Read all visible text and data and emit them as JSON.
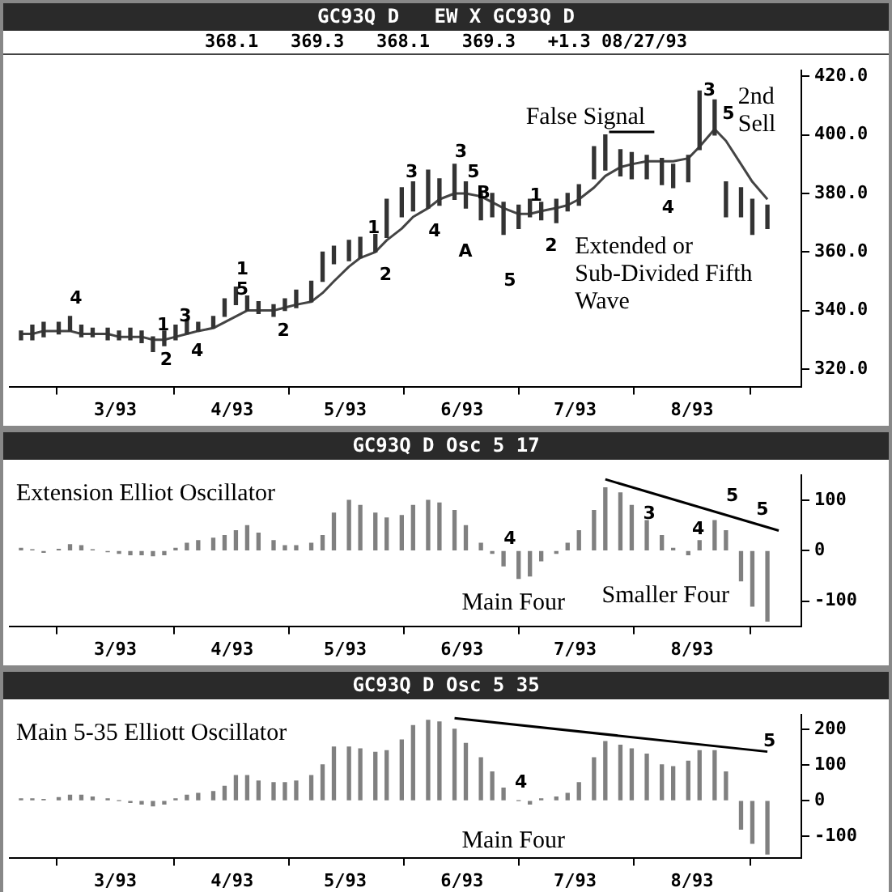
{
  "chart_data": [
    {
      "type": "bar",
      "title": "GC93Q D   EW X GC93Q D",
      "subtitle": "368.1   369.3   368.1   369.3   +1.3 08/27/93",
      "x": [
        "1993-02-04",
        "1993-02-07",
        "1993-02-10",
        "1993-02-14",
        "1993-02-17",
        "1993-02-20",
        "1993-02-23",
        "1993-02-27",
        "1993-03-02",
        "1993-03-05",
        "1993-03-08",
        "1993-03-11",
        "1993-03-14",
        "1993-03-17",
        "1993-03-20",
        "1993-03-23",
        "1993-03-27",
        "1993-03-30",
        "1993-04-02",
        "1993-04-05",
        "1993-04-08",
        "1993-04-12",
        "1993-04-15",
        "1993-04-18",
        "1993-04-22",
        "1993-04-25",
        "1993-04-28",
        "1993-05-02",
        "1993-05-05",
        "1993-05-09",
        "1993-05-12",
        "1993-05-16",
        "1993-05-19",
        "1993-05-23",
        "1993-05-26",
        "1993-05-30",
        "1993-06-02",
        "1993-06-06",
        "1993-06-09",
        "1993-06-12",
        "1993-06-16",
        "1993-06-19",
        "1993-06-22",
        "1993-06-26",
        "1993-06-29",
        "1993-07-02",
        "1993-07-06",
        "1993-07-09",
        "1993-07-13",
        "1993-07-16",
        "1993-07-20",
        "1993-07-24",
        "1993-07-27",
        "1993-07-31",
        "1993-08-03",
        "1993-08-07",
        "1993-08-10",
        "1993-08-14",
        "1993-08-17",
        "1993-08-21"
      ],
      "xlim": [
        "1993-02-01",
        "1993-08-30"
      ],
      "xticks": [
        {
          "value": "1993-03-01",
          "label": "3/93"
        },
        {
          "value": "1993-04-01",
          "label": "4/93"
        },
        {
          "value": "1993-05-01",
          "label": "5/93"
        },
        {
          "value": "1993-06-01",
          "label": "6/93"
        },
        {
          "value": "1993-07-01",
          "label": "7/93"
        },
        {
          "value": "1993-08-01",
          "label": "8/93"
        }
      ],
      "ylim": [
        314,
        422
      ],
      "yticks": [
        {
          "value": 320,
          "label": "320.0"
        },
        {
          "value": 340,
          "label": "340.0"
        },
        {
          "value": 360,
          "label": "360.0"
        },
        {
          "value": 380,
          "label": "380.0"
        },
        {
          "value": 400,
          "label": "400.0"
        },
        {
          "value": 420,
          "label": "420.0"
        }
      ],
      "grid": false,
      "marker": "none",
      "series": [
        {
          "color": "#333333",
          "base": [
            330,
            330,
            331,
            332,
            333,
            331,
            331,
            330,
            330,
            330,
            329,
            326,
            328,
            330,
            332,
            333,
            334,
            338,
            342,
            340,
            339,
            338,
            340,
            341,
            343,
            350,
            356,
            357,
            358,
            360,
            365,
            372,
            374,
            375,
            376,
            378,
            375,
            371,
            372,
            366,
            368,
            372,
            371,
            370,
            374,
            376,
            385,
            388,
            386,
            385,
            385,
            383,
            382,
            384,
            395,
            400,
            372,
            372,
            366,
            368
          ],
          "values": [
            3,
            5,
            5,
            4,
            5,
            4,
            3,
            4,
            3,
            4,
            4,
            5,
            5,
            5,
            5,
            3,
            4,
            6,
            6,
            5,
            4,
            4,
            4,
            6,
            7,
            10,
            6,
            7,
            7,
            6,
            13,
            10,
            10,
            13,
            9,
            12,
            9,
            9,
            8,
            11,
            8,
            6,
            6,
            8,
            6,
            7,
            11,
            12,
            9,
            9,
            8,
            9,
            8,
            9,
            20,
            12,
            12,
            10,
            12,
            8
          ]
        },
        {
          "type": "line",
          "color": "#444444",
          "values": [
            332,
            332,
            333,
            333,
            333,
            332,
            332,
            332,
            331,
            331,
            331,
            330,
            330,
            331,
            332,
            333,
            334,
            336,
            338,
            340,
            340,
            340,
            341,
            342,
            343,
            346,
            350,
            355,
            358,
            360,
            364,
            368,
            372,
            375,
            378,
            380,
            380,
            379,
            377,
            375,
            373,
            373,
            374,
            375,
            376,
            378,
            382,
            386,
            389,
            390,
            391,
            391,
            391,
            392,
            396,
            402,
            398,
            390,
            384,
            378
          ]
        },
        {
          "type": "line",
          "color": "#000000",
          "x": [
            "1993-07-10",
            "1993-07-22"
          ],
          "values": [
            401,
            401
          ]
        }
      ],
      "annotations": [
        "4",
        "1",
        "2",
        "3",
        "4",
        "1",
        "5",
        "2",
        "1",
        "2",
        "3",
        "4",
        "3",
        "5",
        "A",
        "B",
        "5",
        "1",
        "2",
        "4",
        "3",
        "5",
        "False Signal",
        "2nd Sell",
        "Extended or Sub-Divided Fifth Wave"
      ]
    },
    {
      "type": "bar",
      "title": "GC93Q D Osc 5 17",
      "x": [
        "1993-02-04",
        "1993-02-07",
        "1993-02-10",
        "1993-02-14",
        "1993-02-17",
        "1993-02-20",
        "1993-02-23",
        "1993-02-27",
        "1993-03-02",
        "1993-03-05",
        "1993-03-08",
        "1993-03-11",
        "1993-03-14",
        "1993-03-17",
        "1993-03-20",
        "1993-03-23",
        "1993-03-27",
        "1993-03-30",
        "1993-04-02",
        "1993-04-05",
        "1993-04-08",
        "1993-04-12",
        "1993-04-15",
        "1993-04-18",
        "1993-04-22",
        "1993-04-25",
        "1993-04-28",
        "1993-05-02",
        "1993-05-05",
        "1993-05-09",
        "1993-05-12",
        "1993-05-16",
        "1993-05-19",
        "1993-05-23",
        "1993-05-26",
        "1993-05-30",
        "1993-06-02",
        "1993-06-06",
        "1993-06-09",
        "1993-06-12",
        "1993-06-16",
        "1993-06-19",
        "1993-06-22",
        "1993-06-26",
        "1993-06-29",
        "1993-07-02",
        "1993-07-06",
        "1993-07-09",
        "1993-07-13",
        "1993-07-16",
        "1993-07-20",
        "1993-07-24",
        "1993-07-27",
        "1993-07-31",
        "1993-08-03",
        "1993-08-07",
        "1993-08-10",
        "1993-08-14",
        "1993-08-17",
        "1993-08-21"
      ],
      "xlim": [
        "1993-02-01",
        "1993-08-30"
      ],
      "xticks": [
        {
          "value": "1993-03-01",
          "label": "3/93"
        },
        {
          "value": "1993-04-01",
          "label": "4/93"
        },
        {
          "value": "1993-05-01",
          "label": "5/93"
        },
        {
          "value": "1993-06-01",
          "label": "6/93"
        },
        {
          "value": "1993-07-01",
          "label": "7/93"
        },
        {
          "value": "1993-08-01",
          "label": "8/93"
        }
      ],
      "ylim": [
        -150,
        150
      ],
      "yticks": [
        -100,
        0,
        100
      ],
      "grid": false,
      "marker": "none",
      "series": [
        {
          "color": "#808080",
          "values": [
            5,
            2,
            -3,
            3,
            12,
            10,
            2,
            -2,
            -5,
            -8,
            -8,
            -10,
            -8,
            5,
            15,
            20,
            25,
            30,
            40,
            50,
            35,
            20,
            10,
            10,
            15,
            30,
            75,
            100,
            90,
            75,
            65,
            70,
            90,
            100,
            95,
            80,
            50,
            15,
            -5,
            -30,
            -55,
            -50,
            -20,
            -5,
            15,
            40,
            80,
            125,
            115,
            90,
            60,
            30,
            5,
            -8,
            20,
            60,
            40,
            -60,
            -110,
            -140
          ]
        },
        {
          "type": "line",
          "color": "#000000",
          "x": [
            "1993-07-09",
            "1993-08-24"
          ],
          "values": [
            142,
            40
          ]
        }
      ],
      "annotations": [
        "Extension Elliot Oscillator",
        "4",
        "Main Four",
        "Smaller Four",
        "3",
        "4",
        "5",
        "5"
      ]
    },
    {
      "type": "bar",
      "title": "GC93Q D Osc 5 35",
      "x": [
        "1993-02-04",
        "1993-02-07",
        "1993-02-10",
        "1993-02-14",
        "1993-02-17",
        "1993-02-20",
        "1993-02-23",
        "1993-02-27",
        "1993-03-02",
        "1993-03-05",
        "1993-03-08",
        "1993-03-11",
        "1993-03-14",
        "1993-03-17",
        "1993-03-20",
        "1993-03-23",
        "1993-03-27",
        "1993-03-30",
        "1993-04-02",
        "1993-04-05",
        "1993-04-08",
        "1993-04-12",
        "1993-04-15",
        "1993-04-18",
        "1993-04-22",
        "1993-04-25",
        "1993-04-28",
        "1993-05-02",
        "1993-05-05",
        "1993-05-09",
        "1993-05-12",
        "1993-05-16",
        "1993-05-19",
        "1993-05-23",
        "1993-05-26",
        "1993-05-30",
        "1993-06-02",
        "1993-06-06",
        "1993-06-09",
        "1993-06-12",
        "1993-06-16",
        "1993-06-19",
        "1993-06-22",
        "1993-06-26",
        "1993-06-29",
        "1993-07-02",
        "1993-07-06",
        "1993-07-09",
        "1993-07-13",
        "1993-07-16",
        "1993-07-20",
        "1993-07-24",
        "1993-07-27",
        "1993-07-31",
        "1993-08-03",
        "1993-08-07",
        "1993-08-10",
        "1993-08-14",
        "1993-08-17",
        "1993-08-21"
      ],
      "xlim": [
        "1993-02-01",
        "1993-08-30"
      ],
      "xticks": [
        {
          "value": "1993-03-01",
          "label": "3/93"
        },
        {
          "value": "1993-04-01",
          "label": "4/93"
        },
        {
          "value": "1993-05-01",
          "label": "5/93"
        },
        {
          "value": "1993-06-01",
          "label": "6/93"
        },
        {
          "value": "1993-07-01",
          "label": "7/93"
        },
        {
          "value": "1993-08-01",
          "label": "8/93"
        }
      ],
      "ylim": [
        -160,
        240
      ],
      "yticks": [
        -100,
        0,
        100,
        200
      ],
      "grid": false,
      "marker": "none",
      "series": [
        {
          "color": "#808080",
          "values": [
            5,
            5,
            3,
            8,
            15,
            15,
            10,
            5,
            0,
            -5,
            -10,
            -15,
            -10,
            5,
            15,
            20,
            25,
            40,
            70,
            70,
            55,
            50,
            50,
            55,
            70,
            100,
            150,
            150,
            145,
            135,
            140,
            170,
            210,
            225,
            220,
            200,
            160,
            120,
            80,
            35,
            0,
            -10,
            5,
            10,
            20,
            50,
            120,
            165,
            155,
            145,
            130,
            100,
            95,
            110,
            140,
            140,
            80,
            -80,
            -120,
            -150
          ]
        },
        {
          "type": "line",
          "color": "#000000",
          "x": [
            "1993-05-30",
            "1993-08-21"
          ],
          "values": [
            231,
            137
          ]
        }
      ],
      "annotations": [
        "Main 5-35 Elliott Oscillator",
        "4",
        "Main Four",
        "5"
      ]
    }
  ]
}
